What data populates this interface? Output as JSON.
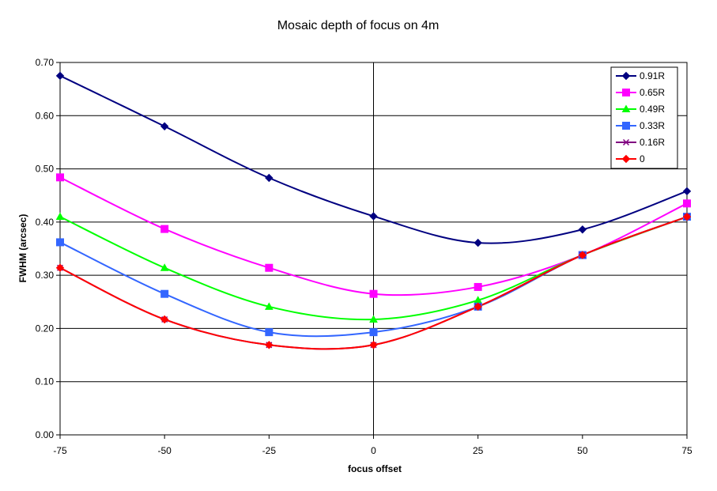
{
  "chart_data": {
    "type": "line",
    "title": "Mosaic depth of focus on 4m",
    "xlabel": "focus offset",
    "ylabel": "FWHM (arcsec)",
    "x": [
      -75,
      -50,
      -25,
      0,
      25,
      50,
      75
    ],
    "xticks": [
      "-75",
      "-50",
      "-25",
      "0",
      "25",
      "50",
      "75"
    ],
    "yticks": [
      "0.00",
      "0.10",
      "0.20",
      "0.30",
      "0.40",
      "0.50",
      "0.60",
      "0.70"
    ],
    "xlim": [
      -75,
      75
    ],
    "ylim": [
      0,
      0.7
    ],
    "grid": "horizontal",
    "legend_position": "top-right",
    "series": [
      {
        "name": "0.91R",
        "color": "#000080",
        "marker": "diamond",
        "values": [
          0.675,
          0.58,
          0.483,
          0.411,
          0.361,
          0.386,
          0.458
        ]
      },
      {
        "name": "0.65R",
        "color": "#FF00FF",
        "marker": "square",
        "values": [
          0.484,
          0.387,
          0.314,
          0.265,
          0.278,
          0.338,
          0.435
        ]
      },
      {
        "name": "0.49R",
        "color": "#00FF00",
        "marker": "triangle",
        "values": [
          0.41,
          0.314,
          0.241,
          0.217,
          0.253,
          0.338,
          0.41
        ]
      },
      {
        "name": "0.33R",
        "color": "#3366FF",
        "marker": "square",
        "values": [
          0.362,
          0.265,
          0.193,
          0.193,
          0.241,
          0.338,
          0.41
        ]
      },
      {
        "name": "0.16R",
        "color": "#800080",
        "marker": "x",
        "values": [
          0.314,
          0.217,
          0.169,
          0.169,
          0.241,
          0.338,
          0.41
        ]
      },
      {
        "name": "0",
        "color": "#FF0000",
        "marker": "diamond",
        "values": [
          0.314,
          0.217,
          0.169,
          0.169,
          0.241,
          0.338,
          0.41
        ]
      }
    ]
  }
}
